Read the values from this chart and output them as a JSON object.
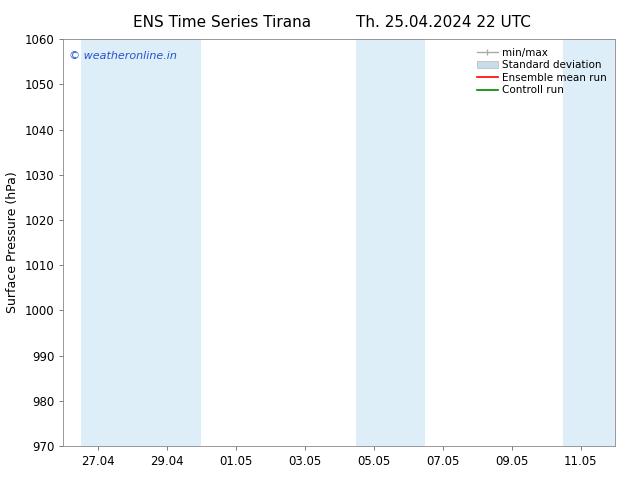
{
  "title_left": "ENS Time Series Tirana",
  "title_right": "Th. 25.04.2024 22 UTC",
  "ylabel": "Surface Pressure (hPa)",
  "ylim": [
    970,
    1060
  ],
  "yticks": [
    970,
    980,
    990,
    1000,
    1010,
    1020,
    1030,
    1040,
    1050,
    1060
  ],
  "xtick_labels": [
    "27.04",
    "29.04",
    "01.05",
    "03.05",
    "05.05",
    "07.05",
    "09.05",
    "11.05"
  ],
  "xtick_positions": [
    0,
    2,
    4,
    6,
    8,
    10,
    12,
    14
  ],
  "xlim": [
    -1.0,
    15.0
  ],
  "background_color": "#ffffff",
  "plot_bg_color": "#ffffff",
  "band_color": "#ddeef8",
  "band_ranges": [
    [
      -0.5,
      1.5
    ],
    [
      1.5,
      3.0
    ],
    [
      7.5,
      9.5
    ],
    [
      13.5,
      15.0
    ]
  ],
  "watermark_text": "© weatheronline.in",
  "watermark_color": "#2255cc",
  "legend_items": [
    {
      "label": "min/max",
      "color": "#aaaaaa"
    },
    {
      "label": "Standard deviation",
      "color": "#c8dcea"
    },
    {
      "label": "Ensemble mean run",
      "color": "#ff0000"
    },
    {
      "label": "Controll run",
      "color": "#008800"
    }
  ],
  "spine_color": "#888888",
  "tick_color": "#000000",
  "title_fontsize": 11,
  "label_fontsize": 9,
  "tick_fontsize": 8.5,
  "legend_fontsize": 7.5,
  "watermark_fontsize": 8
}
